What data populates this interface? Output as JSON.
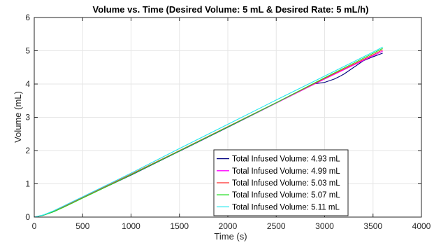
{
  "chart_data": {
    "type": "line",
    "title": "Volume vs. Time (Desired Volume: 5 mL & Desired Rate: 5 mL/h)",
    "xlabel": "Time (s)",
    "ylabel": "Volume (mL)",
    "xlim": [
      0,
      4000
    ],
    "ylim": [
      0,
      6
    ],
    "xticks": [
      0,
      500,
      1000,
      1500,
      2000,
      2500,
      3000,
      3500,
      4000
    ],
    "yticks": [
      0,
      1,
      2,
      3,
      4,
      5,
      6
    ],
    "grid": true,
    "legend_position": "lower-right",
    "series": [
      {
        "name": "Total Infused Volume: 4.93 mL",
        "color": "#00007f",
        "x": [
          0,
          100,
          200,
          300,
          400,
          500,
          1000,
          1500,
          2000,
          2500,
          2900,
          2950,
          3000,
          3050,
          3100,
          3150,
          3200,
          3250,
          3300,
          3350,
          3400,
          3500,
          3600
        ],
        "y": [
          0,
          0.06,
          0.16,
          0.3,
          0.44,
          0.58,
          1.26,
          1.98,
          2.7,
          3.43,
          4.01,
          4.03,
          4.05,
          4.1,
          4.15,
          4.22,
          4.3,
          4.4,
          4.5,
          4.6,
          4.7,
          4.82,
          4.93
        ]
      },
      {
        "name": "Total Infused Volume: 4.99 mL",
        "color": "#ff00ff",
        "x": [
          0,
          100,
          200,
          300,
          400,
          500,
          1000,
          1500,
          2000,
          2500,
          3000,
          3500,
          3600
        ],
        "y": [
          0,
          0.06,
          0.17,
          0.31,
          0.45,
          0.59,
          1.28,
          1.99,
          2.71,
          3.43,
          4.15,
          4.85,
          4.99
        ]
      },
      {
        "name": "Total Infused Volume: 5.03 mL",
        "color": "#ff2a2a",
        "x": [
          0,
          100,
          200,
          300,
          400,
          500,
          1000,
          1500,
          2000,
          2500,
          3000,
          3500,
          3600
        ],
        "y": [
          0,
          0.06,
          0.17,
          0.31,
          0.45,
          0.59,
          1.29,
          2.0,
          2.72,
          3.44,
          4.17,
          4.88,
          5.03
        ]
      },
      {
        "name": "Total Infused Volume: 5.07 mL",
        "color": "#22dd22",
        "x": [
          0,
          100,
          200,
          300,
          400,
          500,
          1000,
          1500,
          2000,
          2500,
          3000,
          3500,
          3600
        ],
        "y": [
          0,
          0.06,
          0.16,
          0.29,
          0.43,
          0.57,
          1.27,
          1.99,
          2.71,
          3.44,
          4.19,
          4.92,
          5.07
        ]
      },
      {
        "name": "Total Infused Volume: 5.11 mL",
        "color": "#22e8ee",
        "x": [
          0,
          100,
          200,
          300,
          400,
          500,
          1000,
          1500,
          2000,
          2500,
          3000,
          3500,
          3600
        ],
        "y": [
          0,
          0.07,
          0.19,
          0.33,
          0.47,
          0.61,
          1.32,
          2.06,
          2.79,
          3.52,
          4.24,
          4.96,
          5.11
        ]
      }
    ]
  }
}
